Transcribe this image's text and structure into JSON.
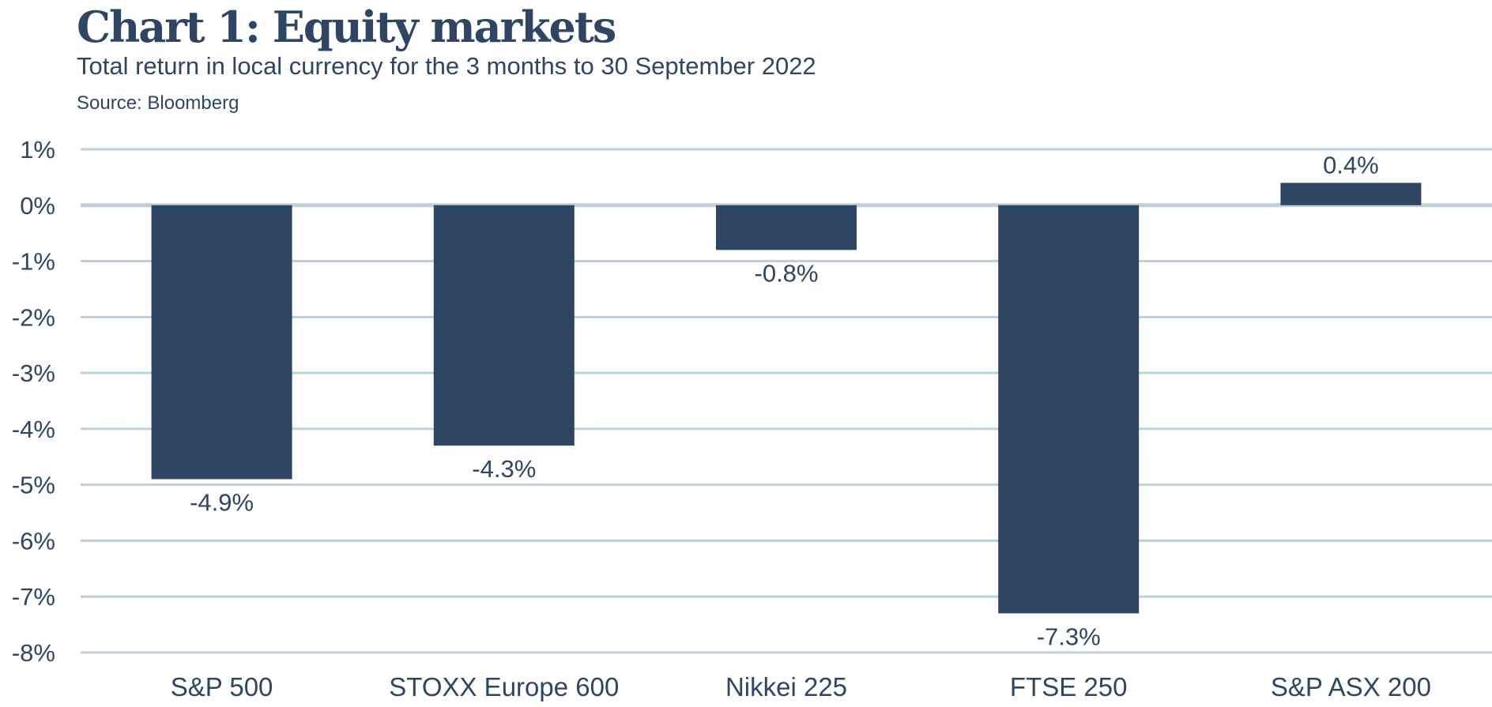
{
  "chart_data": {
    "type": "bar",
    "title": "Chart 1: Equity markets",
    "subtitle": "Total return in local currency for the 3 months to 30 September 2022",
    "source": "Source: Bloomberg",
    "categories": [
      "S&P 500",
      "STOXX Europe 600",
      "Nikkei 225",
      "FTSE 250",
      "S&P ASX 200"
    ],
    "values": [
      -4.9,
      -4.3,
      -0.8,
      -7.3,
      0.4
    ],
    "data_labels": [
      "-4.9%",
      "-4.3%",
      "-0.8%",
      "-7.3%",
      "0.4%"
    ],
    "ylim": [
      -8,
      1
    ],
    "yticks": [
      1,
      0,
      -1,
      -2,
      -3,
      -4,
      -5,
      -6,
      -7,
      -8
    ],
    "ytick_labels": [
      "1%",
      "0%",
      "-1%",
      "-2%",
      "-3%",
      "-4%",
      "-5%",
      "-6%",
      "-7%",
      "-8%"
    ],
    "xlabel": "",
    "ylabel": "",
    "grid": true,
    "colors": {
      "bar": "#2e4664",
      "grid": "#bfd0d9",
      "text": "#2e4664"
    }
  }
}
